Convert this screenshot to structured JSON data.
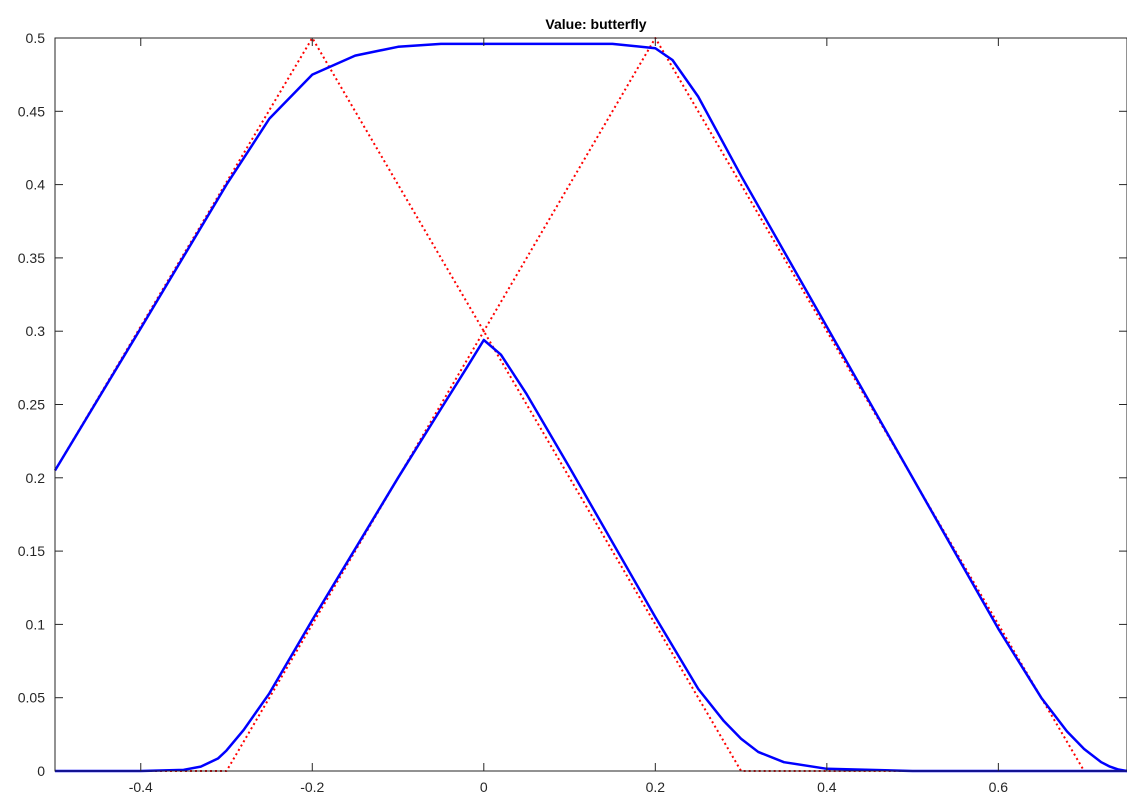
{
  "chart_data": {
    "type": "line",
    "title": "Value: butterfly",
    "xlabel": "",
    "ylabel": "",
    "xlim": [
      -0.5,
      0.75
    ],
    "ylim": [
      0,
      0.5
    ],
    "x_ticks": [
      -0.4,
      -0.2,
      0,
      0.2,
      0.4,
      0.6
    ],
    "x_tick_labels": [
      "-0.4",
      "-0.2",
      "0",
      "0.2",
      "0.4",
      "0.6"
    ],
    "y_ticks": [
      0,
      0.05,
      0.1,
      0.15,
      0.2,
      0.25,
      0.3,
      0.35,
      0.4,
      0.45,
      0.5
    ],
    "y_tick_labels": [
      "0",
      "0.05",
      "0.1",
      "0.15",
      "0.2",
      "0.25",
      "0.3",
      "0.35",
      "0.4",
      "0.45",
      "0.5"
    ],
    "grid": false,
    "legend": "none",
    "series": [
      {
        "style": "dotted",
        "color": "#ff0000",
        "x": [
          -0.5,
          -0.2,
          0.3,
          0.75
        ],
        "y": [
          0.205,
          0.5,
          0,
          0
        ]
      },
      {
        "style": "dotted",
        "color": "#ff0000",
        "x": [
          -0.5,
          -0.3,
          0.2,
          0.7,
          0.75
        ],
        "y": [
          0,
          0,
          0.5,
          0,
          0
        ]
      },
      {
        "style": "solid",
        "color": "#0000ff",
        "x": [
          -0.5,
          -0.4,
          -0.3,
          -0.25,
          -0.2,
          -0.15,
          -0.1,
          -0.05,
          0,
          0.1,
          0.15,
          0.2,
          0.22,
          0.25,
          0.3,
          0.4,
          0.5,
          0.6,
          0.65,
          0.68,
          0.7,
          0.72,
          0.73,
          0.74,
          0.75
        ],
        "y": [
          0.205,
          0.302,
          0.4,
          0.445,
          0.475,
          0.488,
          0.494,
          0.496,
          0.496,
          0.496,
          0.496,
          0.493,
          0.485,
          0.46,
          0.406,
          0.303,
          0.2,
          0.097,
          0.05,
          0.027,
          0.015,
          0.006,
          0.003,
          0.001,
          0
        ]
      },
      {
        "style": "solid",
        "color": "#0000ff",
        "x": [
          -0.5,
          -0.4,
          -0.35,
          -0.33,
          -0.31,
          -0.3,
          -0.28,
          -0.25,
          -0.2,
          -0.1,
          -0.05,
          -0.02,
          0,
          0.02,
          0.05,
          0.1,
          0.2,
          0.25,
          0.28,
          0.3,
          0.32,
          0.35,
          0.4,
          0.5,
          0.75
        ],
        "y": [
          0,
          0,
          0.0008,
          0.003,
          0.0085,
          0.014,
          0.028,
          0.053,
          0.103,
          0.2,
          0.247,
          0.275,
          0.294,
          0.284,
          0.257,
          0.207,
          0.105,
          0.056,
          0.034,
          0.022,
          0.013,
          0.006,
          0.0015,
          0,
          0
        ]
      }
    ]
  }
}
